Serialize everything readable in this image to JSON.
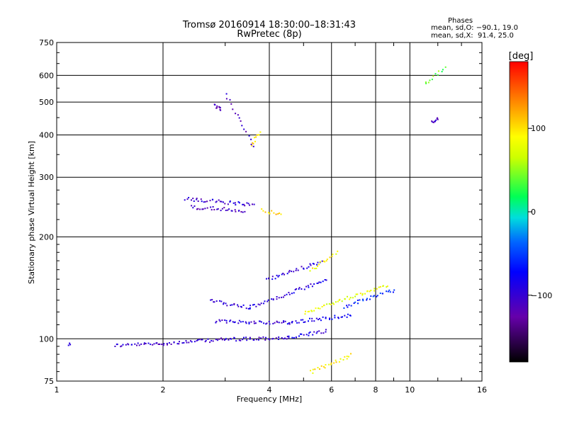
{
  "chart_data": {
    "type": "scatter",
    "title": "Tromsø 20160914 18:30:00–18:31:43",
    "subtitle": "RwPretec (8p)",
    "xlabel": "Frequency [MHz]",
    "ylabel": "Stationary phase Virtual Height [km]",
    "x_scale": "log",
    "y_scale": "log",
    "xlim": [
      1,
      16
    ],
    "ylim": [
      75,
      750
    ],
    "x_ticks": [
      "1",
      "2",
      "4",
      "6",
      "8",
      "10",
      "16"
    ],
    "x_tick_values": [
      1,
      2,
      4,
      6,
      8,
      10,
      16
    ],
    "y_ticks": [
      "75",
      "100",
      "200",
      "300",
      "400",
      "500",
      "600",
      "750"
    ],
    "y_tick_values": [
      75,
      100,
      200,
      300,
      400,
      500,
      600,
      750
    ],
    "grid": true,
    "stats": {
      "header": "Phases",
      "o_line": "mean, sd,O: −90.1, 19.0",
      "x_line": "mean, sd,X:  91.4, 25.0"
    },
    "colorbar": {
      "label": "[deg]",
      "range": [
        -180,
        180
      ],
      "ticks": [
        "100",
        "0",
        "−100"
      ],
      "tick_values": [
        100,
        0,
        -100
      ]
    },
    "clusters": [
      {
        "f": [
          1.08
        ],
        "h": [
          97
        ],
        "phase": -100
      },
      {
        "f": [
          1.45,
          1.9
        ],
        "h": [
          96,
          97
        ],
        "phase": -100
      },
      {
        "f": [
          1.9,
          3.0
        ],
        "h": [
          97,
          100
        ],
        "phase": -105
      },
      {
        "f": [
          3.0,
          4.5
        ],
        "h": [
          100,
          101
        ],
        "phase": -100
      },
      {
        "f": [
          4.5,
          5.8
        ],
        "h": [
          101,
          106
        ],
        "phase": -90
      },
      {
        "f": [
          2.8,
          4.6
        ],
        "h": [
          113,
          112
        ],
        "phase": -95
      },
      {
        "f": [
          4.5,
          6.8
        ],
        "h": [
          112,
          118
        ],
        "phase": -85
      },
      {
        "f": [
          2.7,
          3.5
        ],
        "h": [
          130,
          124
        ],
        "phase": -100
      },
      {
        "f": [
          3.5,
          5.8
        ],
        "h": [
          124,
          150
        ],
        "phase": -90
      },
      {
        "f": [
          3.9,
          5.6
        ],
        "h": [
          150,
          170
        ],
        "phase": -95
      },
      {
        "f": [
          5.2,
          6.2
        ],
        "h": [
          160,
          180
        ],
        "phase": 90
      },
      {
        "f": [
          5.0,
          8.6
        ],
        "h": [
          120,
          145
        ],
        "phase": 80
      },
      {
        "f": [
          6.5,
          9.0
        ],
        "h": [
          125,
          140
        ],
        "phase": -60
      },
      {
        "f": [
          2.3,
          3.6
        ],
        "h": [
          260,
          250
        ],
        "phase": -100
      },
      {
        "f": [
          2.4,
          3.4
        ],
        "h": [
          246,
          240
        ],
        "phase": -110
      },
      {
        "f": [
          3.8,
          4.3
        ],
        "h": [
          240,
          235
        ],
        "phase": 105
      },
      {
        "f": [
          3.55,
          3.75
        ],
        "h": [
          375,
          410
        ],
        "phase": 100
      },
      {
        "f": [
          3.0,
          3.6
        ],
        "h": [
          530,
          370
        ],
        "phase": -110
      },
      {
        "f": [
          2.8,
          2.9
        ],
        "h": [
          490,
          480
        ],
        "phase": -110
      },
      {
        "f": [
          5.2,
          6.8
        ],
        "h": [
          80,
          90
        ],
        "phase": 95
      },
      {
        "f": [
          11.0,
          12.5
        ],
        "h": [
          570,
          630
        ],
        "phase": 40
      },
      {
        "f": [
          11.5,
          12.0
        ],
        "h": [
          440,
          450
        ],
        "phase": -110
      }
    ]
  }
}
